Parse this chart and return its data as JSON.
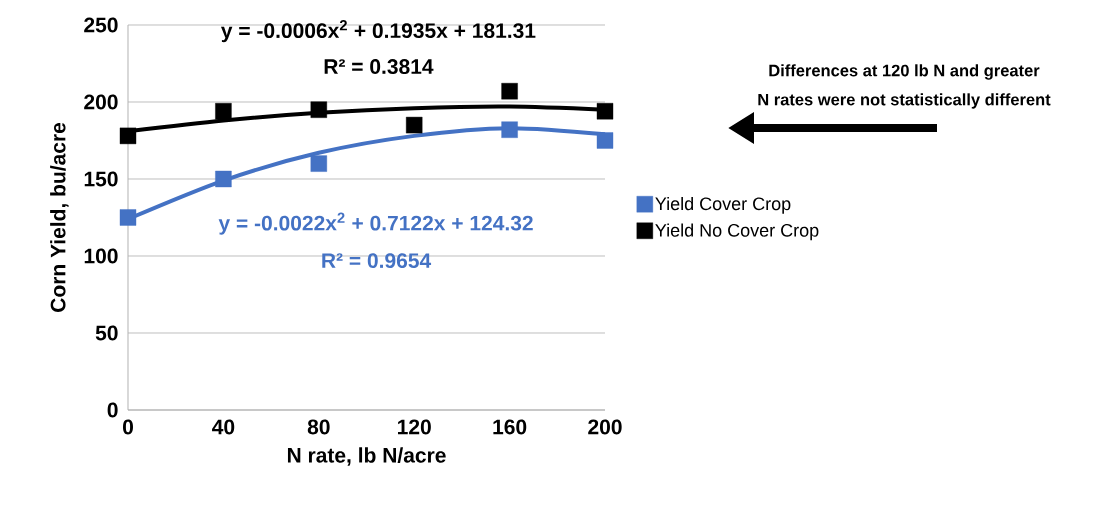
{
  "chart_data": {
    "type": "scatter",
    "xlabel": "N rate, lb N/acre",
    "ylabel": "Corn Yield, bu/acre",
    "xlim": [
      0,
      200
    ],
    "ylim": [
      0,
      250
    ],
    "xticks": [
      0,
      40,
      80,
      120,
      160,
      200
    ],
    "yticks": [
      0,
      50,
      100,
      150,
      200,
      250
    ],
    "grid": "y",
    "legend": "right",
    "marker": "square",
    "series": [
      {
        "name": "Yield Cover Crop",
        "color": "#4472c4",
        "x": [
          0,
          40,
          80,
          160,
          200
        ],
        "values": [
          125,
          150,
          160,
          182,
          175
        ]
      },
      {
        "name": "Yield No Cover Crop",
        "color": "#000000",
        "x": [
          0,
          40,
          80,
          120,
          160,
          200
        ],
        "values": [
          178,
          194,
          195,
          185,
          207,
          194
        ]
      },
      {
        "type": "line",
        "marker": "none",
        "color": "#4472c4",
        "x": [
          0,
          40,
          80,
          120,
          160,
          200
        ],
        "values": [
          124,
          149,
          167,
          178,
          183,
          179
        ]
      },
      {
        "type": "line",
        "marker": "none",
        "color": "#000000",
        "x": [
          0,
          40,
          80,
          120,
          160,
          200
        ],
        "values": [
          181,
          188,
          193,
          196,
          197,
          195
        ]
      }
    ],
    "annotations": [
      "y = -0.0006x$^{2}$ + 0.1935x + 181.31",
      "R² = 0.3814",
      "y = -0.0022x$^{2}$ + 0.7122x + 124.32",
      "R² = 0.9654",
      "Differences at 120 lb N and greater",
      "N rates were not statistically different"
    ]
  }
}
